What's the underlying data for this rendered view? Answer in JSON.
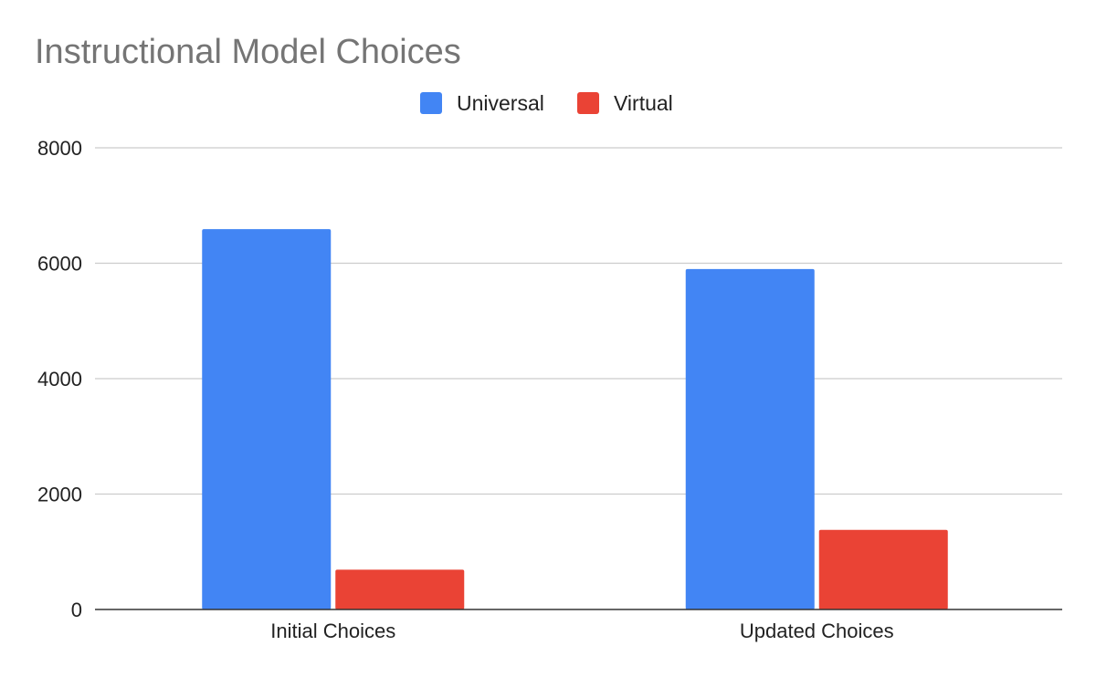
{
  "chart_data": {
    "type": "bar",
    "title": "Instructional Model Choices",
    "xlabel": "",
    "ylabel": "",
    "categories": [
      "Initial Choices",
      "Updated Choices"
    ],
    "series": [
      {
        "name": "Universal",
        "color": "#4285f4",
        "values": [
          6590,
          5900
        ]
      },
      {
        "name": "Virtual",
        "color": "#ea4335",
        "values": [
          690,
          1380
        ]
      }
    ],
    "ylim": [
      0,
      8000
    ],
    "yticks": [
      0,
      2000,
      4000,
      6000,
      8000
    ],
    "grid": true,
    "legend_position": "top-center"
  }
}
